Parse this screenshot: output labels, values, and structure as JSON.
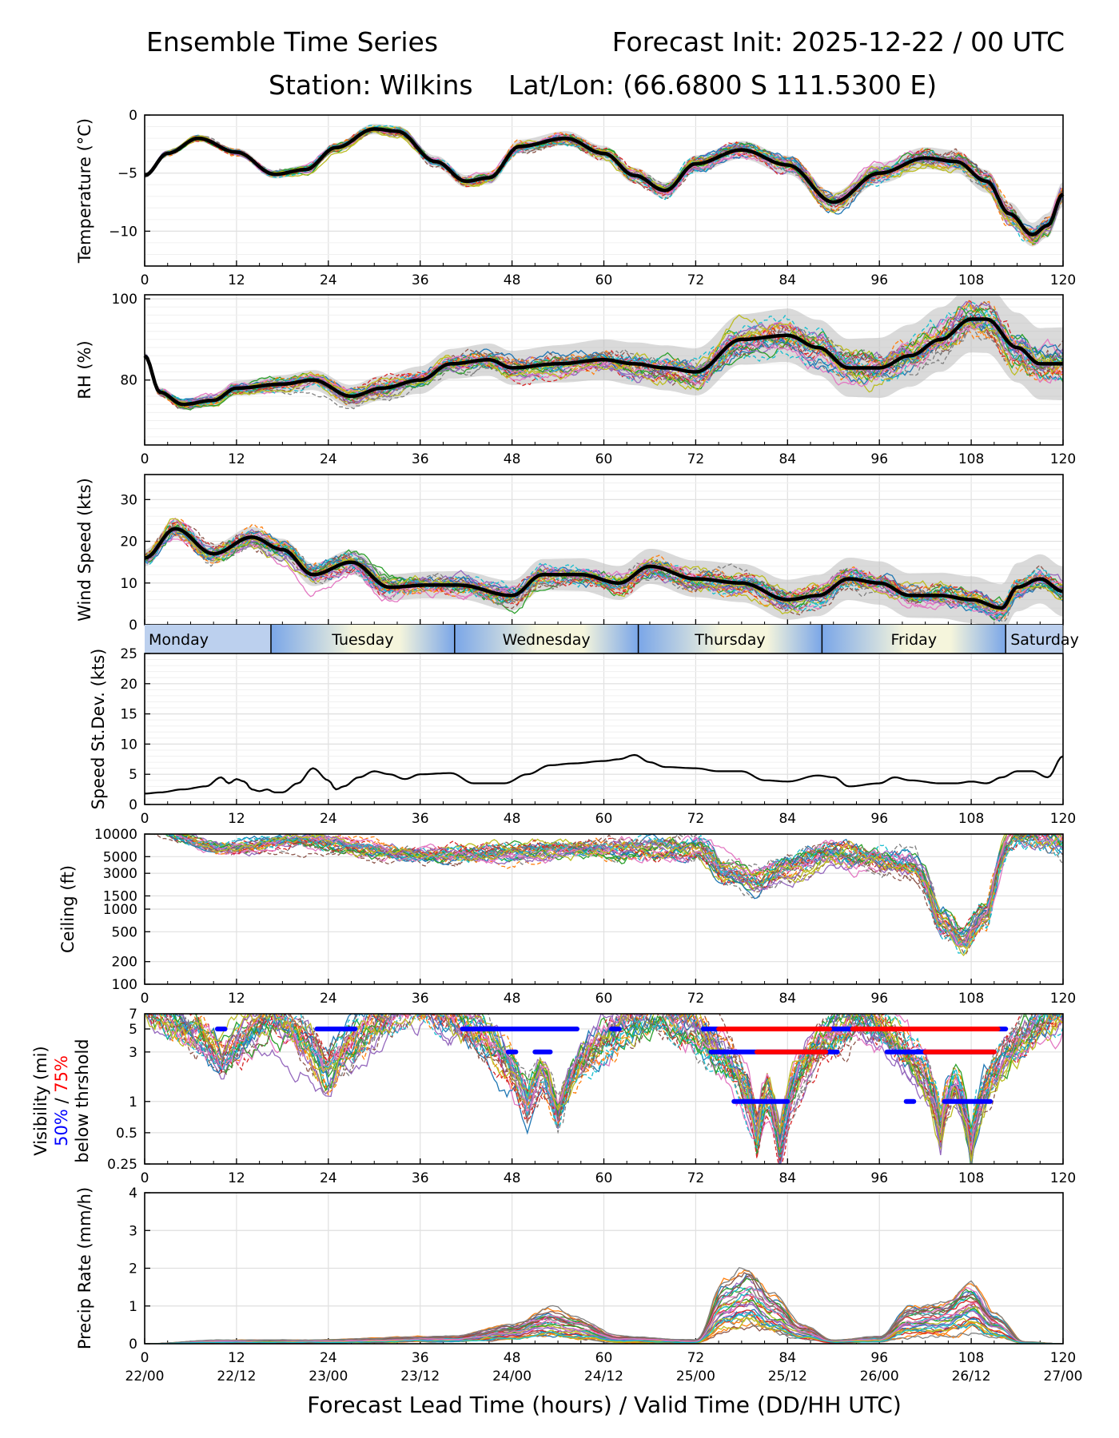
{
  "header": {
    "title_left": "Ensemble Time Series",
    "title_right": "Forecast Init: 2025-12-22 / 00 UTC",
    "station": "Station: Wilkins",
    "latlon": "Lat/Lon: (66.6800 S 111.5300 E)"
  },
  "xaxis": {
    "label": "Forecast Lead Time (hours) / Valid Time (DD/HH UTC)",
    "range": [
      0,
      120
    ],
    "ticks": [
      0,
      12,
      24,
      36,
      48,
      60,
      72,
      84,
      96,
      108,
      120
    ],
    "tick_labels": [
      "0",
      "12",
      "24",
      "36",
      "48",
      "60",
      "72",
      "84",
      "96",
      "108",
      "120"
    ],
    "valid_labels": [
      "22/00",
      "22/12",
      "23/00",
      "23/12",
      "24/00",
      "24/12",
      "25/00",
      "25/12",
      "26/00",
      "26/12",
      "27/00"
    ]
  },
  "day_band": {
    "days": [
      {
        "label": "Monday",
        "start": 0,
        "end": 16.5
      },
      {
        "label": "Tuesday",
        "start": 16.5,
        "end": 40.5
      },
      {
        "label": "Wednesday",
        "start": 40.5,
        "end": 64.5
      },
      {
        "label": "Thursday",
        "start": 64.5,
        "end": 88.5
      },
      {
        "label": "Friday",
        "start": 88.5,
        "end": 112.5
      },
      {
        "label": "Saturday",
        "start": 112.5,
        "end": 120
      }
    ]
  },
  "colors": {
    "members": [
      "#1f77b4",
      "#ff7f0e",
      "#2ca02c",
      "#d62728",
      "#9467bd",
      "#8c564b",
      "#e377c2",
      "#7f7f7f",
      "#bcbd22",
      "#17becf"
    ],
    "mean": "#000000",
    "spread": "#bbbbbb",
    "vis50": "#0000ff",
    "vis75": "#ff0000",
    "grid": "#e0e0e0"
  },
  "chart_data": [
    {
      "id": "temperature",
      "type": "line",
      "ylabel": "Temperature (°C)",
      "ylim": [
        -13,
        0
      ],
      "yticks": [
        0,
        -5,
        -10
      ],
      "ytick_labels": [
        "0",
        "−5",
        "−10"
      ],
      "series": [
        {
          "name": "ensemble mean",
          "x": [
            0,
            3,
            7,
            12,
            17,
            21,
            25,
            30,
            33,
            38,
            42,
            45,
            49,
            55,
            60,
            64,
            68,
            72,
            78,
            84,
            90,
            96,
            102,
            106,
            110,
            113,
            116,
            118,
            120
          ],
          "values": [
            -5.2,
            -3.3,
            -2.0,
            -3.2,
            -5.1,
            -4.7,
            -2.8,
            -1.2,
            -1.4,
            -4.0,
            -5.7,
            -5.4,
            -2.7,
            -2.0,
            -3.3,
            -5.2,
            -6.5,
            -4.2,
            -3.0,
            -4.3,
            -7.5,
            -5.0,
            -3.7,
            -4.0,
            -5.7,
            -8.5,
            -10.3,
            -9.5,
            -6.8
          ]
        }
      ]
    },
    {
      "id": "relative_humidity",
      "type": "line",
      "ylabel": "RH (%)",
      "ylim": [
        64,
        101
      ],
      "yticks": [
        100,
        80
      ],
      "ytick_labels": [
        "100",
        "80"
      ],
      "series": [
        {
          "name": "ensemble mean",
          "x": [
            0,
            2,
            5,
            9,
            12,
            18,
            22,
            27,
            31,
            36,
            40,
            45,
            48,
            54,
            60,
            64,
            68,
            72,
            78,
            84,
            88,
            92,
            96,
            100,
            104,
            108,
            110,
            114,
            117,
            120
          ],
          "values": [
            86,
            77,
            74,
            75,
            78,
            79,
            80,
            76,
            78,
            80,
            84,
            85,
            83,
            84,
            85,
            84,
            83,
            82,
            90,
            91,
            88,
            83,
            83,
            86,
            90,
            95,
            95,
            88,
            84,
            84
          ]
        }
      ]
    },
    {
      "id": "wind_speed",
      "type": "line",
      "ylabel": "Wind Speed (kts)",
      "ylim": [
        0,
        36
      ],
      "yticks": [
        0,
        10,
        20,
        30
      ],
      "ytick_labels": [
        "0",
        "10",
        "20",
        "30"
      ],
      "series": [
        {
          "name": "ensemble mean",
          "x": [
            0,
            4,
            9,
            14,
            18,
            22,
            27,
            32,
            37,
            41,
            48,
            52,
            57,
            62,
            66,
            72,
            78,
            84,
            88,
            92,
            96,
            100,
            104,
            108,
            112,
            114,
            117,
            120
          ],
          "values": [
            16,
            23,
            17,
            21,
            18,
            12,
            15,
            9,
            9.5,
            9.5,
            7,
            12,
            12,
            10,
            14,
            11,
            10,
            6,
            7,
            11,
            10,
            7,
            7,
            6,
            4,
            9,
            11,
            8
          ]
        }
      ]
    },
    {
      "id": "speed_stdev",
      "type": "line",
      "ylabel": "Speed St.Dev. (kts)",
      "ylim": [
        0,
        25
      ],
      "yticks": [
        0,
        5,
        10,
        15,
        20,
        25
      ],
      "ytick_labels": [
        "0",
        "5",
        "10",
        "15",
        "20",
        "25"
      ],
      "series": [
        {
          "name": "speed st.dev.",
          "x": [
            0,
            2,
            5,
            8,
            10,
            11,
            12,
            13,
            14,
            15,
            16,
            17,
            18,
            20,
            22,
            24,
            25,
            26,
            28,
            30,
            32,
            34,
            36,
            40,
            43,
            45,
            47,
            50,
            53,
            56,
            60,
            62,
            64,
            66,
            68,
            72,
            75,
            78,
            81,
            84,
            88,
            90,
            92,
            96,
            98,
            100,
            104,
            106,
            108,
            110,
            112,
            114,
            116,
            118,
            120
          ],
          "values": [
            1.8,
            2.0,
            2.5,
            3.0,
            4.5,
            3.5,
            4.2,
            3.8,
            2.5,
            2.2,
            2.5,
            2.0,
            2.0,
            3.5,
            6.0,
            4.0,
            2.5,
            3.0,
            4.5,
            5.5,
            5.0,
            4.2,
            5.0,
            5.2,
            3.5,
            3.5,
            3.5,
            5.0,
            6.5,
            6.8,
            7.2,
            7.5,
            8.2,
            7.0,
            6.2,
            6.0,
            5.5,
            5.5,
            4.0,
            3.8,
            4.8,
            4.5,
            3.0,
            3.5,
            4.5,
            4.0,
            3.5,
            3.5,
            3.8,
            3.5,
            4.5,
            5.5,
            5.5,
            4.5,
            8.0
          ]
        }
      ]
    },
    {
      "id": "ceiling",
      "type": "line",
      "ylabel": "Ceiling (ft)",
      "scale": "log",
      "ylim": [
        100,
        10000
      ],
      "yticks": [
        10000,
        5000,
        3000,
        1500,
        1000,
        500,
        200,
        100
      ],
      "ytick_labels": [
        "10000",
        "5000",
        "3000",
        "1500",
        "1000",
        "500",
        "200",
        "100"
      ],
      "series": [
        {
          "name": "low member path (approx)",
          "x": [
            0,
            10,
            20,
            36,
            60,
            72,
            76,
            80,
            84,
            90,
            100,
            104,
            107,
            110,
            114,
            120
          ],
          "values": [
            9000,
            5000,
            6000,
            4000,
            5000,
            5000,
            2500,
            1800,
            2800,
            4000,
            3000,
            500,
            300,
            700,
            8000,
            6000
          ]
        }
      ]
    },
    {
      "id": "visibility",
      "type": "line",
      "ylabel": "Visibility (mi)",
      "ylabel_50": "50%",
      "ylabel_sep": " / ",
      "ylabel_75": "75%",
      "ylabel_line3": "below thrshold",
      "scale": "log",
      "ylim": [
        0.25,
        7
      ],
      "yticks": [
        7,
        5,
        3,
        1,
        0.5,
        0.25
      ],
      "ytick_labels": [
        "7",
        "5",
        "3",
        "1",
        "0.5",
        "0.25"
      ],
      "series": [
        {
          "name": "50% below 5 mi",
          "color": "blue",
          "level": 5,
          "segments": [
            [
              9.5,
              10.5
            ],
            [
              22.5,
              27.5
            ],
            [
              41.5,
              56.5
            ],
            [
              61,
              62
            ],
            [
              73,
              112.5
            ]
          ]
        },
        {
          "name": "50% below 3 mi",
          "color": "blue",
          "level": 3,
          "segments": [
            [
              47.5,
              48.5
            ],
            [
              51,
              53
            ],
            [
              74,
              90.5
            ],
            [
              97,
              111
            ]
          ]
        },
        {
          "name": "50% below 1 mi",
          "color": "blue",
          "level": 1,
          "segments": [
            [
              77,
              84
            ],
            [
              99.5,
              100.5
            ],
            [
              104.5,
              110.5
            ]
          ]
        },
        {
          "name": "75% below 5 mi",
          "color": "red",
          "level": 5,
          "segments": [
            [
              75,
              89.5
            ],
            [
              92.5,
              111.5
            ]
          ]
        },
        {
          "name": "75% below 3 mi",
          "color": "red",
          "level": 3,
          "segments": [
            [
              80,
              89
            ],
            [
              102,
              111
            ]
          ]
        }
      ]
    },
    {
      "id": "precip_rate",
      "type": "line",
      "ylabel": "Precip Rate (mm/h)",
      "ylim": [
        0,
        4
      ],
      "yticks": [
        0,
        1,
        2,
        3,
        4
      ],
      "ytick_labels": [
        "0",
        "1",
        "2",
        "3",
        "4"
      ],
      "series": [
        {
          "name": "member max (approx)",
          "x": [
            0,
            10,
            20,
            40,
            48,
            53,
            56,
            62,
            72,
            76,
            79,
            82,
            86,
            90,
            96,
            100,
            104,
            108,
            111,
            115,
            120
          ],
          "values": [
            0,
            0.1,
            0.1,
            0.2,
            0.5,
            0.9,
            0.7,
            0.2,
            0.1,
            1.6,
            2.0,
            1.3,
            0.5,
            0.1,
            0.2,
            1.0,
            1.1,
            1.6,
            0.8,
            0.05,
            0
          ]
        }
      ]
    }
  ]
}
